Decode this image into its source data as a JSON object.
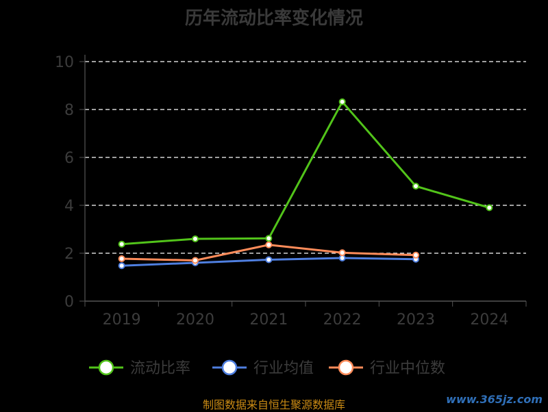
{
  "chart_data": {
    "type": "line",
    "title": "历年流动比率变化情况",
    "categories": [
      "2019",
      "2020",
      "2021",
      "2022",
      "2023",
      "2024"
    ],
    "ylim": [
      0,
      10
    ],
    "yticks": [
      0,
      2,
      4,
      6,
      8,
      10
    ],
    "grid": true,
    "legend_position": "bottom",
    "series": [
      {
        "name": "流动比率",
        "color": "#52c41a",
        "values": [
          2.38,
          2.6,
          2.62,
          8.32,
          4.8,
          3.9
        ]
      },
      {
        "name": "行业均值",
        "color": "#4f7fe0",
        "values": [
          1.48,
          1.6,
          1.73,
          1.8,
          1.75,
          null
        ]
      },
      {
        "name": "行业中位数",
        "color": "#ff8c5a",
        "values": [
          1.77,
          1.7,
          2.35,
          2.02,
          1.92,
          null
        ]
      }
    ]
  },
  "source": "制图数据来自恒生聚源数据库",
  "watermark": "www.365jz.com"
}
